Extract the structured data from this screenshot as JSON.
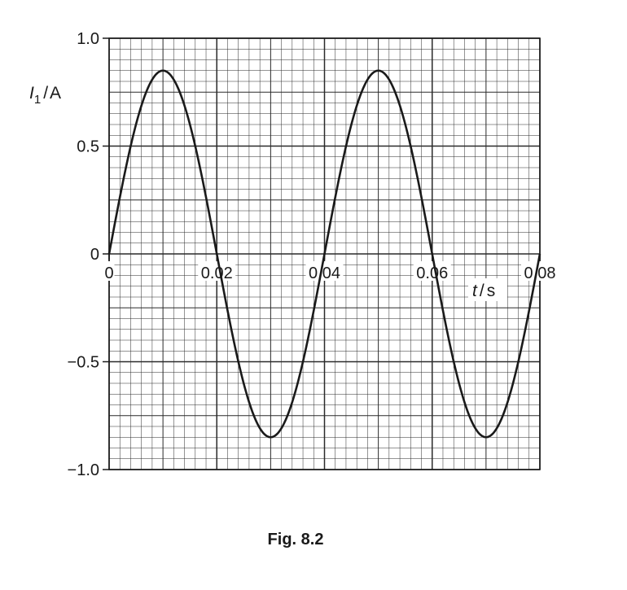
{
  "chart_data": {
    "type": "line",
    "title": "",
    "xlabel": "t / s",
    "ylabel": "I1 / A",
    "xlabel_parts": {
      "symbol": "t",
      "unit": "s"
    },
    "ylabel_parts": {
      "symbol": "I",
      "subscript": "1",
      "unit": "A"
    },
    "xlim": [
      0,
      0.08
    ],
    "ylim": [
      -1.0,
      1.0
    ],
    "x_ticks": [
      0,
      0.02,
      0.04,
      0.06,
      0.08
    ],
    "x_tick_labels": [
      "0",
      "0.02",
      "0.04",
      "0.06",
      "0.08"
    ],
    "y_ticks": [
      1.0,
      0.5,
      0,
      -0.5,
      -1.0
    ],
    "y_tick_labels": [
      "1.0",
      "0.5",
      "0",
      "−0.5",
      "−1.0"
    ],
    "grid": true,
    "grid_minor_divisions": 5,
    "series": [
      {
        "color": "#1a1a1a",
        "function": "sine",
        "amplitude": 0.85,
        "period": 0.04,
        "phase": 0,
        "x_range": [
          0,
          0.08
        ],
        "sample_points": [
          {
            "x": 0,
            "y": 0
          },
          {
            "x": 0.01,
            "y": 0.85
          },
          {
            "x": 0.02,
            "y": 0
          },
          {
            "x": 0.03,
            "y": -0.85
          },
          {
            "x": 0.04,
            "y": 0
          },
          {
            "x": 0.05,
            "y": 0.85
          },
          {
            "x": 0.06,
            "y": 0
          },
          {
            "x": 0.07,
            "y": -0.85
          },
          {
            "x": 0.08,
            "y": 0
          }
        ]
      }
    ]
  },
  "caption": "Fig. 8.2"
}
